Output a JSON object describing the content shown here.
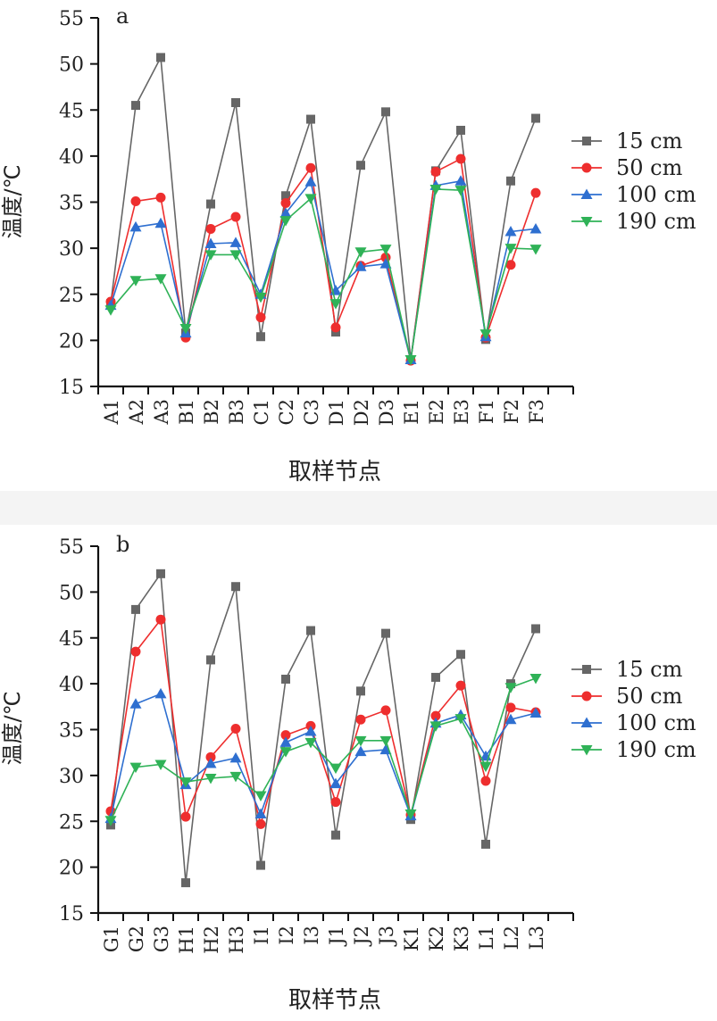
{
  "chart_data": [
    {
      "type": "line",
      "panel_label": "a",
      "xlabel": "取样节点",
      "ylabel": "温度/℃",
      "ylim": [
        15,
        55
      ],
      "yticks": [
        15,
        20,
        25,
        30,
        35,
        40,
        45,
        50,
        55
      ],
      "categories": [
        "A1",
        "A2",
        "A3",
        "B1",
        "B2",
        "B3",
        "C1",
        "C2",
        "C3",
        "D1",
        "D2",
        "D3",
        "E1",
        "E2",
        "E3",
        "F1",
        "F2",
        "F3"
      ],
      "legend_position": "right",
      "series": [
        {
          "name": "15 cm",
          "color": "#666666",
          "marker": "square",
          "values": [
            24.0,
            45.5,
            50.7,
            20.8,
            34.8,
            45.8,
            20.4,
            35.7,
            44.0,
            20.9,
            39.0,
            44.8,
            17.9,
            38.4,
            42.8,
            20.1,
            37.3,
            44.1
          ]
        },
        {
          "name": "50 cm",
          "color": "#ee2e2e",
          "marker": "circle",
          "values": [
            24.2,
            35.1,
            35.5,
            20.3,
            32.1,
            33.4,
            22.5,
            34.9,
            38.7,
            21.4,
            28.1,
            29.0,
            17.8,
            38.3,
            39.7,
            20.3,
            28.2,
            36.0
          ]
        },
        {
          "name": "100 cm",
          "color": "#2e6fd0",
          "marker": "triangle-up",
          "values": [
            23.8,
            32.3,
            32.7,
            20.8,
            30.5,
            30.6,
            25.0,
            33.8,
            37.2,
            25.4,
            28.0,
            28.3,
            17.9,
            36.8,
            37.3,
            20.4,
            31.8,
            32.1
          ]
        },
        {
          "name": "190 cm",
          "color": "#2fb257",
          "marker": "triangle-down",
          "values": [
            23.3,
            26.5,
            26.7,
            21.3,
            29.3,
            29.3,
            24.7,
            33.0,
            35.4,
            24.0,
            29.6,
            29.9,
            17.9,
            36.4,
            36.3,
            20.7,
            30.0,
            29.9
          ]
        }
      ]
    },
    {
      "type": "line",
      "panel_label": "b",
      "xlabel": "取样节点",
      "ylabel": "温度/℃",
      "ylim": [
        15,
        55
      ],
      "yticks": [
        15,
        20,
        25,
        30,
        35,
        40,
        45,
        50,
        55
      ],
      "categories": [
        "G1",
        "G2",
        "G3",
        "H1",
        "H2",
        "H3",
        "I1",
        "I2",
        "I3",
        "J1",
        "J2",
        "J3",
        "K1",
        "K2",
        "K3",
        "L1",
        "L2",
        "L3"
      ],
      "legend_position": "right",
      "series": [
        {
          "name": "15 cm",
          "color": "#666666",
          "marker": "square",
          "values": [
            24.6,
            48.1,
            52.0,
            18.3,
            42.6,
            50.6,
            20.2,
            40.5,
            45.8,
            23.5,
            39.2,
            45.5,
            25.2,
            40.7,
            43.2,
            22.5,
            40.0,
            46.0
          ]
        },
        {
          "name": "50 cm",
          "color": "#ee2e2e",
          "marker": "circle",
          "values": [
            26.1,
            43.5,
            47.0,
            25.5,
            32.0,
            35.1,
            24.7,
            34.4,
            35.4,
            27.1,
            36.1,
            37.1,
            25.7,
            36.5,
            39.8,
            29.4,
            37.4,
            36.9
          ]
        },
        {
          "name": "100 cm",
          "color": "#2e6fd0",
          "marker": "triangle-up",
          "values": [
            25.3,
            37.8,
            38.9,
            29.0,
            31.3,
            31.9,
            25.8,
            33.6,
            34.8,
            29.1,
            32.6,
            32.8,
            25.6,
            35.7,
            36.6,
            32.1,
            36.1,
            36.8
          ]
        },
        {
          "name": "190 cm",
          "color": "#2fb257",
          "marker": "triangle-down",
          "values": [
            25.1,
            30.9,
            31.2,
            29.3,
            29.7,
            29.9,
            27.8,
            32.6,
            33.6,
            30.8,
            33.8,
            33.8,
            25.8,
            35.4,
            36.2,
            31.0,
            39.6,
            40.6
          ]
        }
      ]
    }
  ]
}
